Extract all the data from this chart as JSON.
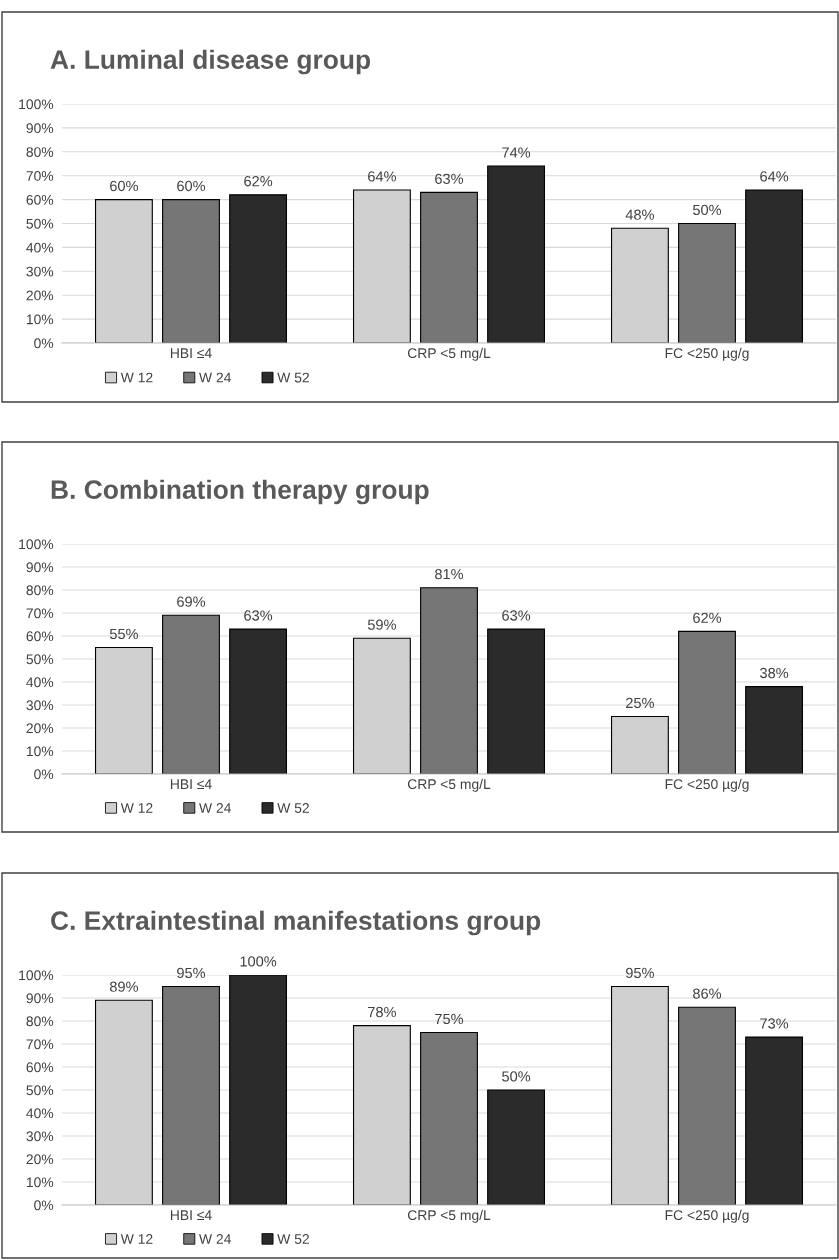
{
  "chart_data": [
    {
      "type": "bar",
      "title": "A. Luminal disease group",
      "categories": [
        "HBI ≤4",
        "CRP <5 mg/L",
        "FC <250 µg/g"
      ],
      "series": [
        {
          "name": "W 12",
          "color": "#d0d0d0",
          "values": [
            60,
            64,
            48
          ],
          "value_labels": [
            "60%",
            "64%",
            "48%"
          ]
        },
        {
          "name": "W 24",
          "color": "#767676",
          "values": [
            60,
            63,
            50
          ],
          "value_labels": [
            "60%",
            "63%",
            "50%"
          ]
        },
        {
          "name": "W 52",
          "color": "#2b2b2b",
          "values": [
            62,
            74,
            64
          ],
          "value_labels": [
            "62%",
            "74%",
            "64%"
          ]
        }
      ],
      "ylim": [
        0,
        100
      ],
      "yticks": [
        {
          "value": 0,
          "label": "0%"
        },
        {
          "value": 10,
          "label": "10%"
        },
        {
          "value": 20,
          "label": "20%"
        },
        {
          "value": 30,
          "label": "30%"
        },
        {
          "value": 40,
          "label": "40%"
        },
        {
          "value": 50,
          "label": "50%"
        },
        {
          "value": 60,
          "label": "60%"
        },
        {
          "value": 70,
          "label": "70%"
        },
        {
          "value": 80,
          "label": "80%"
        },
        {
          "value": 90,
          "label": "90%"
        },
        {
          "value": 100,
          "label": "100%"
        }
      ],
      "grid": "y",
      "legend": "bottom left"
    },
    {
      "type": "bar",
      "title": "B. Combination therapy group",
      "categories": [
        "HBI ≤4",
        "CRP <5 mg/L",
        "FC <250 µg/g"
      ],
      "series": [
        {
          "name": "W 12",
          "color": "#d0d0d0",
          "values": [
            55,
            59,
            25
          ],
          "value_labels": [
            "55%",
            "59%",
            "25%"
          ]
        },
        {
          "name": "W 24",
          "color": "#767676",
          "values": [
            69,
            81,
            62
          ],
          "value_labels": [
            "69%",
            "81%",
            "62%"
          ]
        },
        {
          "name": "W 52",
          "color": "#2b2b2b",
          "values": [
            63,
            63,
            38
          ],
          "value_labels": [
            "63%",
            "63%",
            "38%"
          ]
        }
      ],
      "ylim": [
        0,
        100
      ],
      "yticks": [
        {
          "value": 0,
          "label": "0%"
        },
        {
          "value": 10,
          "label": "10%"
        },
        {
          "value": 20,
          "label": "20%"
        },
        {
          "value": 30,
          "label": "30%"
        },
        {
          "value": 40,
          "label": "40%"
        },
        {
          "value": 50,
          "label": "50%"
        },
        {
          "value": 60,
          "label": "60%"
        },
        {
          "value": 70,
          "label": "70%"
        },
        {
          "value": 80,
          "label": "80%"
        },
        {
          "value": 90,
          "label": "90%"
        },
        {
          "value": 100,
          "label": "100%"
        }
      ],
      "grid": "y",
      "legend": "bottom left"
    },
    {
      "type": "bar",
      "title": "C. Extraintestinal manifestations group",
      "categories": [
        "HBI ≤4",
        "CRP <5 mg/L",
        "FC <250 µg/g"
      ],
      "series": [
        {
          "name": "W 12",
          "color": "#d0d0d0",
          "values": [
            89,
            78,
            95
          ],
          "value_labels": [
            "89%",
            "78%",
            "95%"
          ]
        },
        {
          "name": "W 24",
          "color": "#767676",
          "values": [
            95,
            75,
            86
          ],
          "value_labels": [
            "95%",
            "75%",
            "86%"
          ]
        },
        {
          "name": "W 52",
          "color": "#2b2b2b",
          "values": [
            100,
            50,
            73
          ],
          "value_labels": [
            "100%",
            "50%",
            "73%"
          ]
        }
      ],
      "ylim": [
        0,
        100
      ],
      "yticks": [
        {
          "value": 0,
          "label": "0%"
        },
        {
          "value": 10,
          "label": "10%"
        },
        {
          "value": 20,
          "label": "20%"
        },
        {
          "value": 30,
          "label": "30%"
        },
        {
          "value": 40,
          "label": "40%"
        },
        {
          "value": 50,
          "label": "50%"
        },
        {
          "value": 60,
          "label": "60%"
        },
        {
          "value": 70,
          "label": "70%"
        },
        {
          "value": 80,
          "label": "80%"
        },
        {
          "value": 90,
          "label": "90%"
        },
        {
          "value": 100,
          "label": "100%"
        }
      ],
      "grid": "y",
      "legend": "bottom left"
    }
  ]
}
